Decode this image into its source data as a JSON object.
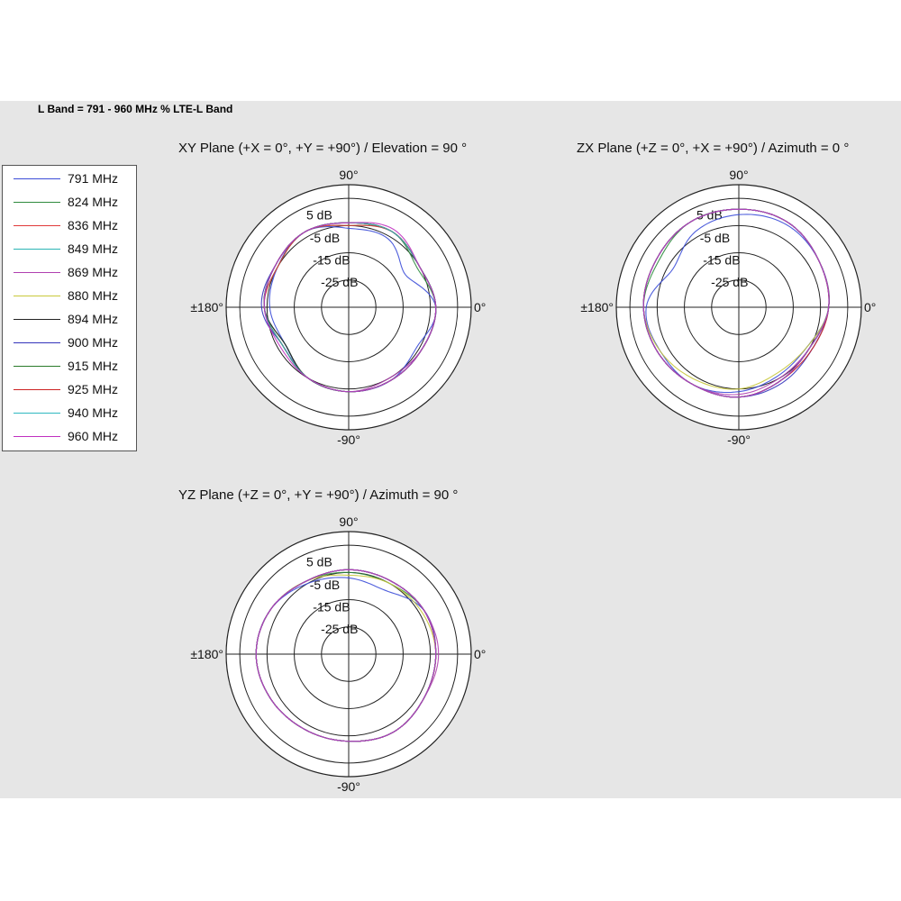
{
  "page_title": "L Band = 791 - 960 MHz % LTE-L Band",
  "legend": {
    "entries": [
      {
        "label": "791 MHz",
        "color": "#3b4cd8"
      },
      {
        "label": "824 MHz",
        "color": "#2e8b3e"
      },
      {
        "label": "836 MHz",
        "color": "#e03a3a"
      },
      {
        "label": "849 MHz",
        "color": "#2bb5b5"
      },
      {
        "label": "869 MHz",
        "color": "#b040b0"
      },
      {
        "label": "880 MHz",
        "color": "#c8c83a"
      },
      {
        "label": "894 MHz",
        "color": "#222222"
      },
      {
        "label": "900 MHz",
        "color": "#3333bb"
      },
      {
        "label": "915 MHz",
        "color": "#2a7a2a"
      },
      {
        "label": "925 MHz",
        "color": "#cc2222"
      },
      {
        "label": "940 MHz",
        "color": "#30b8c0"
      },
      {
        "label": "960 MHz",
        "color": "#c030c0"
      }
    ]
  },
  "chart_data": [
    {
      "type": "polar",
      "title": "XY Plane (+X = 0°, +Y = +90°) / Elevation = 90 °",
      "angle_labels": {
        "top": "90°",
        "bottom": "-90°",
        "left": "±180°",
        "right": "0°"
      },
      "radial_labels": [
        "5 dB",
        "-5 dB",
        "-15 dB",
        "-25 dB"
      ],
      "radial_ticks_db": [
        5,
        -5,
        -15,
        -25
      ],
      "r_range_db": [
        -35,
        10
      ],
      "angles_deg": [
        0,
        30,
        60,
        90,
        120,
        150,
        180,
        210,
        240,
        270,
        300,
        330
      ],
      "series": [
        {
          "name": "791 MHz",
          "gain_db": [
            -3,
            -11,
            -6,
            -6,
            -3,
            -5,
            -6,
            -8,
            -5,
            -4,
            -4,
            -6
          ]
        },
        {
          "name": "824 MHz",
          "gain_db": [
            -3,
            -6,
            -3,
            -5,
            -3,
            -5,
            -4,
            -8,
            -5,
            -4,
            -4,
            -4
          ]
        },
        {
          "name": "836 MHz",
          "gain_db": [
            -3,
            -5,
            -3,
            -5,
            -3,
            -5,
            -4,
            -7,
            -5,
            -4,
            -4,
            -4
          ]
        },
        {
          "name": "849 MHz",
          "gain_db": [
            -3,
            -5,
            -3,
            -4,
            -3,
            -4,
            -4,
            -7,
            -5,
            -4,
            -4,
            -4
          ]
        },
        {
          "name": "869 MHz",
          "gain_db": [
            -3,
            -5,
            -3,
            -4,
            -3,
            -4,
            -4,
            -7,
            -5,
            -4,
            -5,
            -4
          ]
        },
        {
          "name": "880 MHz",
          "gain_db": [
            -3,
            -5,
            -3,
            -4,
            -3,
            -4,
            -4,
            -7,
            -5,
            -4,
            -4,
            -4
          ]
        },
        {
          "name": "894 MHz",
          "gain_db": [
            -3,
            -5,
            -3,
            -4,
            -3,
            -4,
            -4,
            -8,
            -5,
            -4,
            -4,
            -4
          ]
        },
        {
          "name": "900 MHz",
          "gain_db": [
            -3,
            -5,
            -3,
            -4,
            -3,
            -4,
            -3,
            -7,
            -5,
            -4,
            -4,
            -4
          ]
        },
        {
          "name": "915 MHz",
          "gain_db": [
            -3,
            -5,
            -3,
            -4,
            -3,
            -4,
            -4,
            -7,
            -5,
            -4,
            -4,
            -4
          ]
        },
        {
          "name": "925 MHz",
          "gain_db": [
            -3,
            -5,
            -3,
            -4,
            -3,
            -4,
            -4,
            -7,
            -5,
            -4,
            -4,
            -4
          ]
        },
        {
          "name": "940 MHz",
          "gain_db": [
            -3,
            -5,
            -3,
            -4,
            -3,
            -4,
            -4,
            -7,
            -5,
            -4,
            -4,
            -4
          ]
        },
        {
          "name": "960 MHz",
          "gain_db": [
            -3,
            -5,
            -2,
            -4,
            -3,
            -4,
            -4,
            -6,
            -5,
            -4,
            -4,
            -4
          ]
        }
      ]
    },
    {
      "type": "polar",
      "title": "ZX Plane (+Z = 0°, +X = +90°) / Azimuth = 0 °",
      "angle_labels": {
        "top": "90°",
        "bottom": "-90°",
        "left": "±180°",
        "right": "0°"
      },
      "radial_labels": [
        "5 dB",
        "-5 dB",
        "-15 dB",
        "-25 dB"
      ],
      "radial_ticks_db": [
        5,
        -5,
        -15,
        -25
      ],
      "r_range_db": [
        -35,
        10
      ],
      "angles_deg": [
        0,
        30,
        60,
        90,
        120,
        150,
        180,
        210,
        240,
        270,
        300,
        330
      ],
      "series": [
        {
          "name": "791 MHz",
          "gain_db": [
            -2,
            -1,
            0,
            -1,
            -3,
            -7,
            -1,
            -2,
            -2,
            -4,
            -6,
            -6
          ]
        },
        {
          "name": "824 MHz",
          "gain_db": [
            -2,
            -1,
            1,
            1,
            1,
            -1,
            0,
            -1,
            -2,
            -2,
            -4,
            -5
          ]
        },
        {
          "name": "836 MHz",
          "gain_db": [
            -2,
            -1,
            1,
            1,
            1,
            0,
            0,
            -1,
            -2,
            -2,
            -4,
            -5
          ]
        },
        {
          "name": "849 MHz",
          "gain_db": [
            -2,
            -1,
            1,
            1,
            1,
            0,
            0,
            -1,
            -2,
            -2,
            -4,
            -5
          ]
        },
        {
          "name": "869 MHz",
          "gain_db": [
            -2,
            -1,
            1,
            1,
            1,
            0,
            0,
            -1,
            -2,
            -3,
            -5,
            -5
          ]
        },
        {
          "name": "880 MHz",
          "gain_db": [
            -2,
            -1,
            1,
            1,
            1,
            0,
            0,
            -2,
            -4,
            -5,
            -7,
            -6
          ]
        },
        {
          "name": "894 MHz",
          "gain_db": [
            -2,
            -1,
            1,
            1,
            1,
            0,
            0,
            -1,
            -2,
            -2,
            -4,
            -5
          ]
        },
        {
          "name": "900 MHz",
          "gain_db": [
            -2,
            -1,
            1,
            1,
            1,
            0,
            0,
            -1,
            -2,
            -2,
            -3,
            -4
          ]
        },
        {
          "name": "915 MHz",
          "gain_db": [
            -2,
            -1,
            1,
            1,
            1,
            0,
            0,
            -1,
            -2,
            -2,
            -4,
            -5
          ]
        },
        {
          "name": "925 MHz",
          "gain_db": [
            -2,
            -1,
            1,
            1,
            1,
            0,
            0,
            -1,
            -2,
            -2,
            -4,
            -4
          ]
        },
        {
          "name": "940 MHz",
          "gain_db": [
            -2,
            -1,
            1,
            1,
            1,
            0,
            0,
            -1,
            -2,
            -2,
            -4,
            -5
          ]
        },
        {
          "name": "960 MHz",
          "gain_db": [
            -2,
            -1,
            1,
            1,
            1,
            0,
            0,
            -1,
            -2,
            -2,
            -4,
            -5
          ]
        }
      ]
    },
    {
      "type": "polar",
      "title": "YZ Plane (+Z = 0°, +Y = +90°) / Azimuth = 90 °",
      "angle_labels": {
        "top": "90°",
        "bottom": "-90°",
        "left": "±180°",
        "right": "0°"
      },
      "radial_labels": [
        "5 dB",
        "-5 dB",
        "-15 dB",
        "-25 dB"
      ],
      "radial_ticks_db": [
        5,
        -5,
        -15,
        -25
      ],
      "r_range_db": [
        -35,
        10
      ],
      "angles_deg": [
        0,
        30,
        60,
        90,
        120,
        150,
        180,
        210,
        240,
        270,
        300,
        330
      ],
      "series": [
        {
          "name": "791 MHz",
          "gain_db": [
            -3,
            -3,
            -8,
            -7,
            -5,
            -2,
            -1,
            -2,
            -3,
            -3,
            -2,
            -3
          ]
        },
        {
          "name": "824 MHz",
          "gain_db": [
            -3,
            -3,
            -5,
            -5,
            -4,
            -2,
            -1,
            -2,
            -3,
            -3,
            -2,
            -3
          ]
        },
        {
          "name": "836 MHz",
          "gain_db": [
            -3,
            -3,
            -4,
            -4,
            -4,
            -2,
            -1,
            -2,
            -3,
            -3,
            -2,
            -3
          ]
        },
        {
          "name": "849 MHz",
          "gain_db": [
            -3,
            -3,
            -4,
            -4,
            -4,
            -2,
            -1,
            -2,
            -3,
            -3,
            -2,
            -3
          ]
        },
        {
          "name": "869 MHz",
          "gain_db": [
            -2,
            -3,
            -4,
            -4,
            -4,
            -2,
            -1,
            -2,
            -3,
            -3,
            -2,
            -3
          ]
        },
        {
          "name": "880 MHz",
          "gain_db": [
            -3,
            -4,
            -5,
            -6,
            -4,
            -2,
            -1,
            -2,
            -3,
            -3,
            -2,
            -3
          ]
        },
        {
          "name": "894 MHz",
          "gain_db": [
            -3,
            -3,
            -4,
            -4,
            -4,
            -2,
            -1,
            -2,
            -3,
            -3,
            -2,
            -3
          ]
        },
        {
          "name": "900 MHz",
          "gain_db": [
            -3,
            -3,
            -4,
            -4,
            -4,
            -2,
            -1,
            -2,
            -3,
            -3,
            -2,
            -3
          ]
        },
        {
          "name": "915 MHz",
          "gain_db": [
            -3,
            -3,
            -4,
            -4,
            -4,
            -2,
            -1,
            -2,
            -3,
            -3,
            -2,
            -3
          ]
        },
        {
          "name": "925 MHz",
          "gain_db": [
            -3,
            -3,
            -4,
            -4,
            -4,
            -2,
            -1,
            -2,
            -3,
            -3,
            -2,
            -3
          ]
        },
        {
          "name": "940 MHz",
          "gain_db": [
            -3,
            -3,
            -4,
            -4,
            -4,
            -2,
            -1,
            -2,
            -3,
            -3,
            -2,
            -3
          ]
        },
        {
          "name": "960 MHz",
          "gain_db": [
            -3,
            -3,
            -4,
            -4,
            -4,
            -2,
            -1,
            -2,
            -3,
            -3,
            -2,
            -3
          ]
        }
      ]
    }
  ]
}
